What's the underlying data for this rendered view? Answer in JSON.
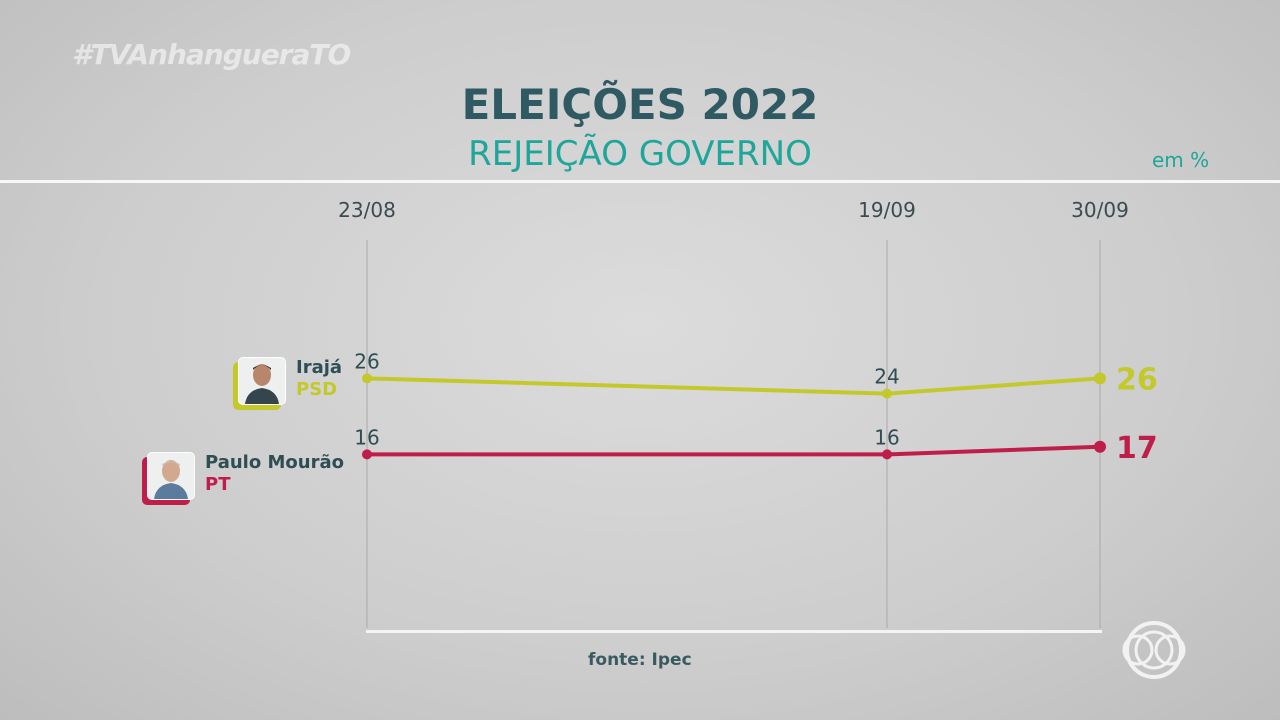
{
  "watermark": "#TVAnhangueraTO",
  "header": {
    "title": "ELEIÇÕES 2022",
    "subtitle": "REJEIÇÃO GOVERNO",
    "unit": "em %"
  },
  "source": "fonte: Ipec",
  "colors": {
    "title": "#2f5a63",
    "subtitle": "#1ea69a",
    "iraja": "#c4c92b",
    "paulo": "#c01e4a"
  },
  "candidates": [
    {
      "name": "Irajá",
      "party": "PSD",
      "color": "#c4c92b",
      "avatar_icon": "candidate-photo-iraja"
    },
    {
      "name": "Paulo Mourão",
      "party": "PT",
      "color": "#c01e4a",
      "avatar_icon": "candidate-photo-paulo-mourao"
    }
  ],
  "chart_data": {
    "type": "line",
    "x": [
      "23/08",
      "19/09",
      "30/09"
    ],
    "series": [
      {
        "name": "Irajá",
        "values": [
          26,
          24,
          26
        ],
        "color": "#c4c92b"
      },
      {
        "name": "Paulo Mourão",
        "values": [
          16,
          16,
          17
        ],
        "color": "#c01e4a"
      }
    ],
    "title": "ELEIÇÕES 2022",
    "subtitle": "REJEIÇÃO GOVERNO",
    "unit": "em %",
    "grid": true,
    "legend": "left"
  }
}
